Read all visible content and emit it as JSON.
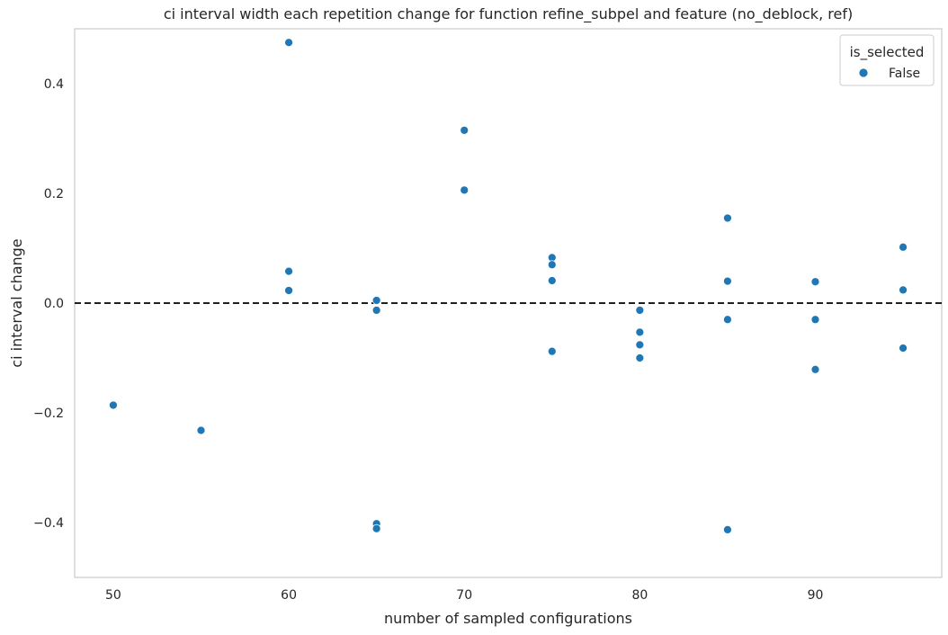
{
  "chart_data": {
    "type": "scatter",
    "title": "ci interval width each repetition change for function refine_subpel and feature (no_deblock, ref)",
    "xlabel": "number of sampled configurations",
    "ylabel": "ci interval change",
    "xlim": [
      47.8,
      97.2
    ],
    "ylim": [
      -0.5,
      0.5
    ],
    "xticks": [
      50,
      60,
      70,
      80,
      90
    ],
    "xtick_labels": [
      "50",
      "60",
      "70",
      "80",
      "90"
    ],
    "yticks": [
      -0.4,
      -0.2,
      0.0,
      0.2,
      0.4
    ],
    "ytick_labels": [
      "−0.4",
      "−0.2",
      "0.0",
      "0.2",
      "0.4"
    ],
    "grid": false,
    "reference_line": {
      "y": 0.0,
      "style": "dashed",
      "color": "#000000"
    },
    "legend": {
      "title": "is_selected",
      "placement": "top-right",
      "entries": [
        "False"
      ]
    },
    "series": [
      {
        "name": "False",
        "color": "#1f77b4",
        "points": [
          {
            "x": 50,
            "y": -0.186
          },
          {
            "x": 55,
            "y": -0.232
          },
          {
            "x": 60,
            "y": 0.475
          },
          {
            "x": 60,
            "y": 0.058
          },
          {
            "x": 60,
            "y": 0.023
          },
          {
            "x": 65,
            "y": 0.005
          },
          {
            "x": 65,
            "y": -0.013
          },
          {
            "x": 65,
            "y": -0.402
          },
          {
            "x": 65,
            "y": -0.411
          },
          {
            "x": 70,
            "y": 0.315
          },
          {
            "x": 70,
            "y": 0.206
          },
          {
            "x": 75,
            "y": 0.083
          },
          {
            "x": 75,
            "y": 0.07
          },
          {
            "x": 75,
            "y": 0.041
          },
          {
            "x": 75,
            "y": -0.088
          },
          {
            "x": 80,
            "y": -0.013
          },
          {
            "x": 80,
            "y": -0.053
          },
          {
            "x": 80,
            "y": -0.076
          },
          {
            "x": 80,
            "y": -0.1
          },
          {
            "x": 85,
            "y": 0.155
          },
          {
            "x": 85,
            "y": 0.04
          },
          {
            "x": 85,
            "y": -0.03
          },
          {
            "x": 85,
            "y": -0.413
          },
          {
            "x": 90,
            "y": 0.039
          },
          {
            "x": 90,
            "y": -0.03
          },
          {
            "x": 90,
            "y": -0.121
          },
          {
            "x": 95,
            "y": 0.102
          },
          {
            "x": 95,
            "y": 0.024
          },
          {
            "x": 95,
            "y": -0.082
          }
        ]
      }
    ]
  }
}
